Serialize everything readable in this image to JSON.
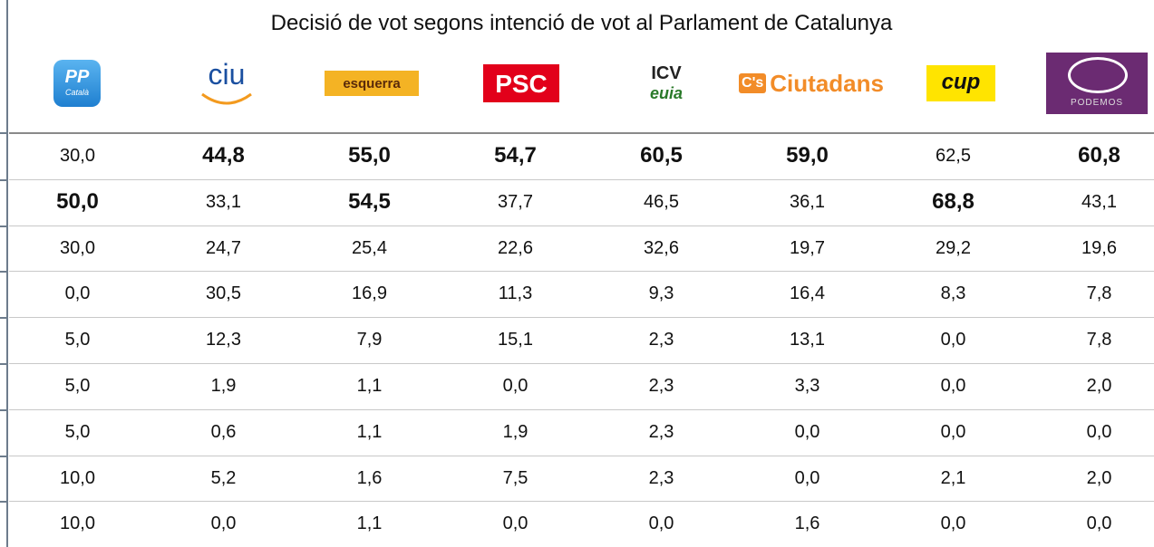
{
  "header": {
    "title": "Decisió de vot segons intenció de vot al Parlament de Catalunya"
  },
  "parties": [
    [
      "PP",
      "Català"
    ],
    [
      "ciu"
    ],
    [
      "esquerra"
    ],
    [
      "PSC"
    ],
    [
      "ICV",
      "euia"
    ],
    [
      "C's",
      "Ciutadans"
    ],
    [
      "cup"
    ],
    [
      "PODEMOS"
    ]
  ],
  "table": {
    "rows": [
      [
        "30,0",
        "44,8",
        "55,0",
        "54,7",
        "60,5",
        "59,0",
        "62,5",
        "60,8"
      ],
      [
        "50,0",
        "33,1",
        "54,5",
        "37,7",
        "46,5",
        "36,1",
        "68,8",
        "43,1"
      ],
      [
        "30,0",
        "24,7",
        "25,4",
        "22,6",
        "32,6",
        "19,7",
        "29,2",
        "19,6"
      ],
      [
        "0,0",
        "30,5",
        "16,9",
        "11,3",
        "9,3",
        "16,4",
        "8,3",
        "7,8"
      ],
      [
        "5,0",
        "12,3",
        "7,9",
        "15,1",
        "2,3",
        "13,1",
        "0,0",
        "7,8"
      ],
      [
        "5,0",
        "1,9",
        "1,1",
        "0,0",
        "2,3",
        "3,3",
        "0,0",
        "2,0"
      ],
      [
        "5,0",
        "0,6",
        "1,1",
        "1,9",
        "2,3",
        "0,0",
        "0,0",
        "0,0"
      ],
      [
        "10,0",
        "5,2",
        "1,6",
        "7,5",
        "2,3",
        "0,0",
        "2,1",
        "2,0"
      ],
      [
        "10,0",
        "0,0",
        "1,1",
        "0,0",
        "0,0",
        "1,6",
        "0,0",
        "0,0"
      ]
    ],
    "bold": [
      [
        false,
        true,
        true,
        true,
        true,
        true,
        false,
        true
      ],
      [
        true,
        false,
        true,
        false,
        false,
        false,
        true,
        false
      ],
      [
        false,
        false,
        false,
        false,
        false,
        false,
        false,
        false
      ],
      [
        false,
        false,
        false,
        false,
        false,
        false,
        false,
        false
      ],
      [
        false,
        false,
        false,
        false,
        false,
        false,
        false,
        false
      ],
      [
        false,
        false,
        false,
        false,
        false,
        false,
        false,
        false
      ],
      [
        false,
        false,
        false,
        false,
        false,
        false,
        false,
        false
      ],
      [
        false,
        false,
        false,
        false,
        false,
        false,
        false,
        false
      ],
      [
        false,
        false,
        false,
        false,
        false,
        false,
        false,
        false
      ]
    ]
  }
}
